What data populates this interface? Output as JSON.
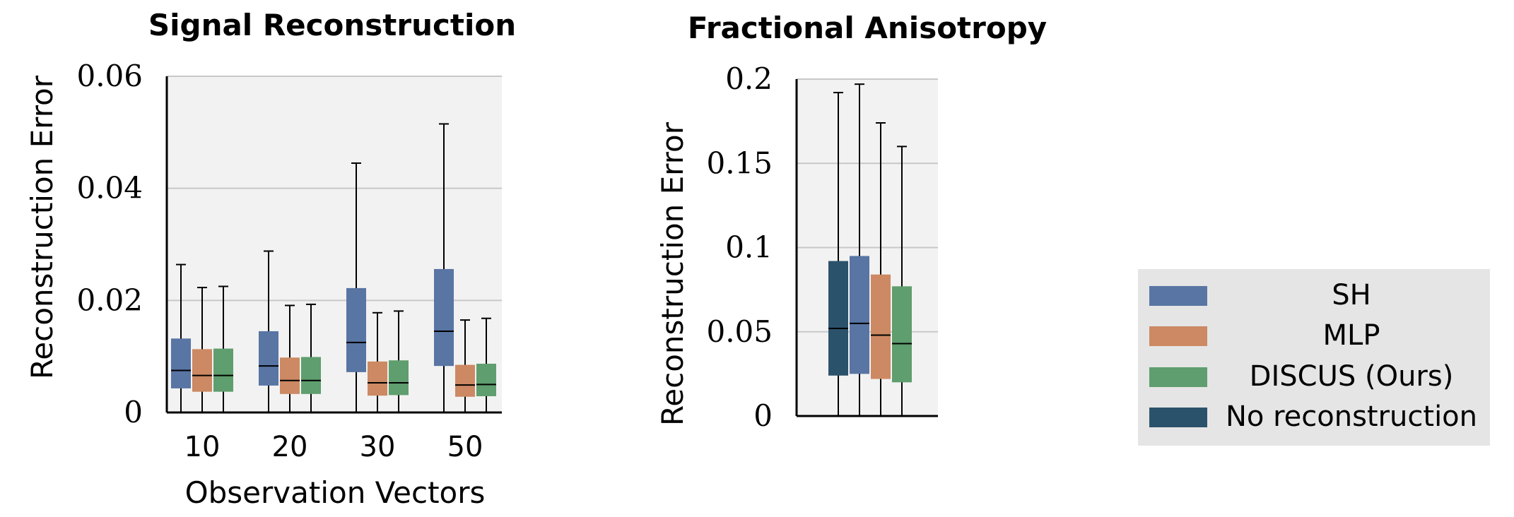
{
  "chart_data": [
    {
      "type": "box",
      "title": "Signal Reconstruction",
      "xlabel": "Observation Vectors",
      "ylabel": "Reconstruction Error",
      "categories": [
        "10",
        "20",
        "30",
        "50"
      ],
      "ylim": [
        0,
        0.06
      ],
      "yticks": [
        0,
        0.02,
        0.04,
        0.06
      ],
      "ytick_labels": [
        "0",
        "0.02",
        "0.04",
        "0.06"
      ],
      "grid": true,
      "series": [
        {
          "name": "SH",
          "color": "#5875a4",
          "boxes": [
            {
              "whislo": 0,
              "q1": 0.0043,
              "med": 0.0075,
              "q3": 0.0132,
              "whishi": 0.0264
            },
            {
              "whislo": 0,
              "q1": 0.0048,
              "med": 0.0083,
              "q3": 0.0145,
              "whishi": 0.0288
            },
            {
              "whislo": 0,
              "q1": 0.0072,
              "med": 0.0125,
              "q3": 0.0222,
              "whishi": 0.0445
            },
            {
              "whislo": 0,
              "q1": 0.0083,
              "med": 0.0145,
              "q3": 0.0256,
              "whishi": 0.0515
            }
          ]
        },
        {
          "name": "MLP",
          "color": "#cc8963",
          "boxes": [
            {
              "whislo": 0,
              "q1": 0.0037,
              "med": 0.0066,
              "q3": 0.0113,
              "whishi": 0.0223
            },
            {
              "whislo": 0,
              "q1": 0.0033,
              "med": 0.0057,
              "q3": 0.0098,
              "whishi": 0.0191
            },
            {
              "whislo": 0,
              "q1": 0.003,
              "med": 0.0053,
              "q3": 0.0091,
              "whishi": 0.0178
            },
            {
              "whislo": 0,
              "q1": 0.0028,
              "med": 0.0049,
              "q3": 0.0085,
              "whishi": 0.0165
            }
          ]
        },
        {
          "name": "DISCUS (Ours)",
          "color": "#5f9e6e",
          "boxes": [
            {
              "whislo": 0,
              "q1": 0.0037,
              "med": 0.0066,
              "q3": 0.0114,
              "whishi": 0.0225
            },
            {
              "whislo": 0,
              "q1": 0.0033,
              "med": 0.0057,
              "q3": 0.0099,
              "whishi": 0.0193
            },
            {
              "whislo": 0,
              "q1": 0.0031,
              "med": 0.0053,
              "q3": 0.0093,
              "whishi": 0.0181
            },
            {
              "whislo": 0,
              "q1": 0.0029,
              "med": 0.005,
              "q3": 0.0087,
              "whishi": 0.0168
            }
          ]
        }
      ]
    },
    {
      "type": "box",
      "title": "Fractional Anisotropy",
      "xlabel": "",
      "ylabel": "Reconstruction Error",
      "categories": [
        ""
      ],
      "ylim": [
        0,
        0.2
      ],
      "yticks": [
        0,
        0.05,
        0.1,
        0.15,
        0.2
      ],
      "ytick_labels": [
        "0",
        "0.05",
        "0.1",
        "0.15",
        "0.2"
      ],
      "grid": true,
      "series": [
        {
          "name": "No reconstruction",
          "color": "#2b526b",
          "boxes": [
            {
              "whislo": 0,
              "q1": 0.024,
              "med": 0.052,
              "q3": 0.092,
              "whishi": 0.192
            }
          ]
        },
        {
          "name": "SH",
          "color": "#5875a4",
          "boxes": [
            {
              "whislo": 0,
              "q1": 0.025,
              "med": 0.055,
              "q3": 0.095,
              "whishi": 0.197
            }
          ]
        },
        {
          "name": "MLP",
          "color": "#cc8963",
          "boxes": [
            {
              "whislo": 0,
              "q1": 0.022,
              "med": 0.048,
              "q3": 0.084,
              "whishi": 0.174
            }
          ]
        },
        {
          "name": "DISCUS (Ours)",
          "color": "#5f9e6e",
          "boxes": [
            {
              "whislo": 0,
              "q1": 0.02,
              "med": 0.043,
              "q3": 0.077,
              "whishi": 0.16
            }
          ]
        }
      ]
    }
  ],
  "legend": {
    "location": "lower-right",
    "entries": [
      {
        "label": "SH",
        "color": "#5875a4"
      },
      {
        "label": "MLP",
        "color": "#cc8963"
      },
      {
        "label": "DISCUS (Ours)",
        "color": "#5f9e6e"
      },
      {
        "label": "No reconstruction",
        "color": "#2b526b"
      }
    ]
  },
  "style": {
    "plot_background": "#f2f2f2",
    "grid_color": "#c8c8c8",
    "legend_background": "#e5e5e5"
  }
}
